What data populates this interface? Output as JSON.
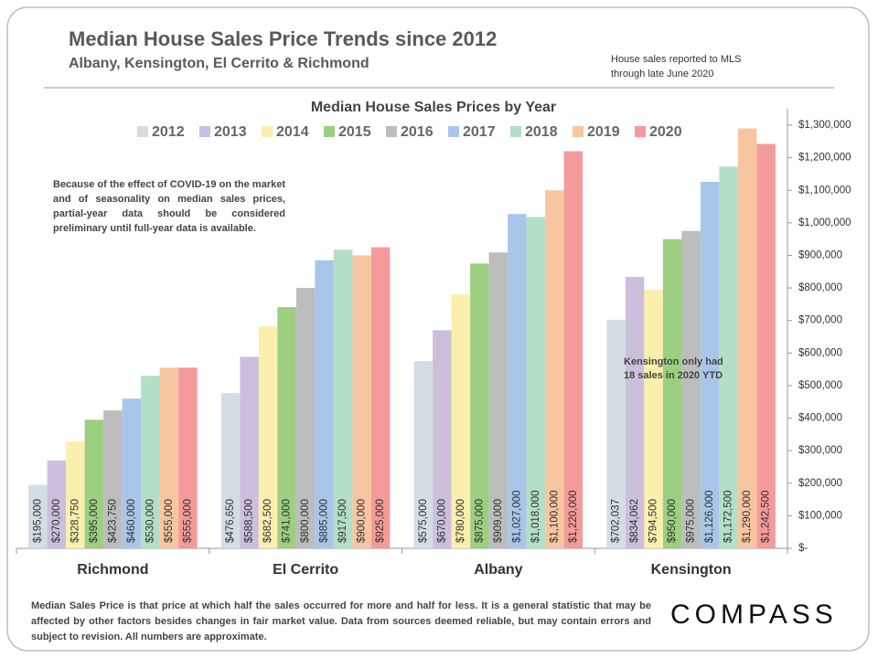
{
  "chart_data": {
    "type": "bar",
    "title": "Median House Sales Price Trends since 2012",
    "subtitle": "Albany, Kensington,  El Cerrito & Richmond",
    "note": "House sales reported to MLS through late June 2020",
    "chart_title": "Median House Sales Prices by Year",
    "annotations": [
      "Because of the effect of COVID-19 on the market and of seasonality on median sales prices, partial-year data should be considered preliminary until full-year data is available.",
      "Kensington only had 18 sales in 2020 YTD"
    ],
    "footer": "Median Sales Price is that price at which half the sales occurred for more and half for less. It is a general statistic that may be affected by other factors besides changes in fair market value. Data from sources deemed reliable, but may contain errors and subject to revision.  All numbers are approximate.",
    "logo": "COMPASS",
    "categories": [
      "Richmond",
      "El Cerrito",
      "Albany",
      "Kensington"
    ],
    "series": [
      {
        "name": "2012",
        "color": "#d3dde3",
        "values": [
          195000,
          476650,
          575000,
          702037
        ],
        "value_labels": [
          "$195,000",
          "$476,650",
          "$575,000",
          "$702,037"
        ]
      },
      {
        "name": "2013",
        "color": "#cbbfdd",
        "values": [
          270000,
          588500,
          670000,
          834062
        ],
        "value_labels": [
          "$270,000",
          "$588,500",
          "$670,000",
          "$834,062"
        ]
      },
      {
        "name": "2014",
        "color": "#fbefae",
        "values": [
          328750,
          682500,
          780000,
          794500
        ],
        "value_labels": [
          "$328,750",
          "$682,500",
          "$780,000",
          "$794,500"
        ]
      },
      {
        "name": "2015",
        "color": "#9ccf7f",
        "values": [
          395000,
          741000,
          875000,
          950000
        ],
        "value_labels": [
          "$395,000",
          "$741,000",
          "$875,000",
          "$950,000"
        ]
      },
      {
        "name": "2016",
        "color": "#bdbdbd",
        "values": [
          423750,
          800000,
          909000,
          975000
        ],
        "value_labels": [
          "$423,750",
          "$800,000",
          "$909,000",
          "$975,000"
        ]
      },
      {
        "name": "2017",
        "color": "#a9c6ea",
        "values": [
          460000,
          885000,
          1027000,
          1126000
        ],
        "value_labels": [
          "$460,000",
          "$885,000",
          "$1,027,000",
          "$1,126,000"
        ]
      },
      {
        "name": "2018",
        "color": "#b3dfc6",
        "values": [
          530000,
          917500,
          1018000,
          1172500
        ],
        "value_labels": [
          "$530,000",
          "$917,500",
          "$1,018,000",
          "$1,172,500"
        ]
      },
      {
        "name": "2019",
        "color": "#f7c6a0",
        "values": [
          555000,
          900000,
          1100000,
          1290000
        ],
        "value_labels": [
          "$555,000",
          "$900,000",
          "$1,100,000",
          "$1,290,000"
        ]
      },
      {
        "name": "2020",
        "color": "#f59a9a",
        "values": [
          555000,
          925000,
          1220000,
          1242500
        ],
        "value_labels": [
          "$555,000",
          "$925,000",
          "$1,220,000",
          "$1,242,500"
        ]
      }
    ],
    "ylim": [
      0,
      1300000
    ],
    "yticks": [
      {
        "value": 0,
        "label": "$-"
      },
      {
        "value": 100000,
        "label": "$100,000"
      },
      {
        "value": 200000,
        "label": "$200,000"
      },
      {
        "value": 300000,
        "label": "$300,000"
      },
      {
        "value": 400000,
        "label": "$400,000"
      },
      {
        "value": 500000,
        "label": "$500,000"
      },
      {
        "value": 600000,
        "label": "$600,000"
      },
      {
        "value": 700000,
        "label": "$700,000"
      },
      {
        "value": 800000,
        "label": "$800,000"
      },
      {
        "value": 900000,
        "label": "$900,000"
      },
      {
        "value": 1000000,
        "label": "$1,000,000"
      },
      {
        "value": 1100000,
        "label": "$1,100,000"
      },
      {
        "value": 1200000,
        "label": "$1,200,000"
      },
      {
        "value": 1300000,
        "label": "$1,300,000"
      }
    ],
    "grid": false,
    "y_axis_side": "right"
  }
}
